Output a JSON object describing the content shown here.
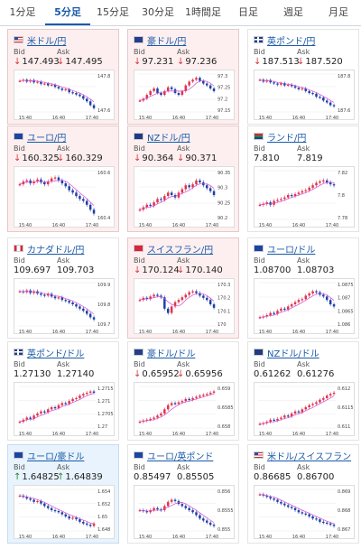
{
  "tabs": [
    {
      "label": "1分足"
    },
    {
      "label": "5分足",
      "active": true
    },
    {
      "label": "15分足"
    },
    {
      "label": "30分足"
    },
    {
      "label": "1時間足"
    },
    {
      "label": "日足"
    },
    {
      "label": "週足"
    },
    {
      "label": "月足"
    }
  ],
  "bid_label": "Bid",
  "ask_label": "Ask",
  "time_labels": [
    "15:40",
    "16:40",
    "17:40"
  ],
  "colors": {
    "up_candle": "#e0334a",
    "down_candle": "#1f3fa8",
    "ma_line": "#d24fd6",
    "tab_accent": "#1a5aa8"
  },
  "cards": [
    {
      "pair": "米ドル/円",
      "flag": "us",
      "bg": "pink",
      "dir": "down",
      "bid": "147.493",
      "ask": "147.495",
      "y_ticks": [
        "147.8",
        "147.6"
      ],
      "trend": [
        0.82,
        0.85,
        0.8,
        0.84,
        0.78,
        0.8,
        0.74,
        0.75,
        0.7,
        0.72,
        0.66,
        0.62,
        0.58,
        0.6,
        0.52,
        0.5,
        0.46,
        0.42,
        0.35,
        0.28,
        0.18,
        0.1
      ]
    },
    {
      "pair": "豪ドル/円",
      "flag": "au",
      "bg": "pink",
      "dir": "down",
      "bid": "97.231",
      "ask": "97.236",
      "y_ticks": [
        "97.3",
        "97.25",
        "97.2",
        "97.15"
      ],
      "trend": [
        0.3,
        0.35,
        0.45,
        0.55,
        0.62,
        0.5,
        0.45,
        0.55,
        0.65,
        0.6,
        0.5,
        0.45,
        0.55,
        0.7,
        0.8,
        0.85,
        0.9,
        0.82,
        0.75,
        0.7,
        0.62,
        0.55
      ]
    },
    {
      "pair": "英ポンド/円",
      "flag": "gb",
      "bg": "white",
      "dir": "down",
      "bid": "187.513",
      "ask": "187.520",
      "y_ticks": [
        "187.8",
        "187.6"
      ],
      "trend": [
        0.85,
        0.8,
        0.84,
        0.78,
        0.75,
        0.72,
        0.76,
        0.7,
        0.72,
        0.68,
        0.64,
        0.6,
        0.62,
        0.55,
        0.5,
        0.48,
        0.4,
        0.38,
        0.3,
        0.25,
        0.18,
        0.15
      ]
    },
    {
      "pair": "ユーロ/円",
      "flag": "eu",
      "bg": "pink",
      "dir": "down",
      "bid": "160.325",
      "ask": "160.329",
      "y_ticks": [
        "160.6",
        "160.4"
      ],
      "trend": [
        0.72,
        0.78,
        0.8,
        0.74,
        0.78,
        0.82,
        0.76,
        0.72,
        0.78,
        0.84,
        0.86,
        0.8,
        0.74,
        0.68,
        0.6,
        0.55,
        0.48,
        0.42,
        0.38,
        0.3,
        0.2,
        0.12
      ]
    },
    {
      "pair": "NZドル/円",
      "flag": "nz",
      "bg": "pink",
      "dir": "down",
      "bid": "90.364",
      "ask": "90.371",
      "y_ticks": [
        "90.35",
        "90.3",
        "90.25",
        "90.2"
      ],
      "trend": [
        0.2,
        0.25,
        0.3,
        0.28,
        0.35,
        0.42,
        0.4,
        0.48,
        0.55,
        0.5,
        0.45,
        0.55,
        0.62,
        0.7,
        0.66,
        0.72,
        0.8,
        0.76,
        0.7,
        0.64,
        0.58,
        0.5
      ]
    },
    {
      "pair": "ランド/円",
      "flag": "za",
      "bg": "white",
      "dir": "none",
      "bid": "7.810",
      "ask": "7.819",
      "y_ticks": [
        "7.82",
        "7.8",
        "7.78"
      ],
      "trend": [
        0.3,
        0.32,
        0.35,
        0.3,
        0.38,
        0.4,
        0.42,
        0.45,
        0.5,
        0.48,
        0.52,
        0.55,
        0.58,
        0.6,
        0.65,
        0.7,
        0.75,
        0.78,
        0.8,
        0.76,
        0.72,
        0.7
      ]
    },
    {
      "pair": "カナダドル/円",
      "flag": "ca",
      "bg": "white",
      "dir": "none",
      "bid": "109.697",
      "ask": "109.703",
      "y_ticks": [
        "109.9",
        "109.8",
        "109.7"
      ],
      "trend": [
        0.8,
        0.78,
        0.82,
        0.76,
        0.8,
        0.75,
        0.72,
        0.7,
        0.74,
        0.68,
        0.64,
        0.66,
        0.6,
        0.58,
        0.54,
        0.5,
        0.45,
        0.4,
        0.35,
        0.28,
        0.2,
        0.15
      ]
    },
    {
      "pair": "スイスフラン/円",
      "flag": "ch",
      "bg": "pink",
      "dir": "down",
      "bid": "170.124",
      "ask": "170.140",
      "y_ticks": [
        "170.3",
        "170.2",
        "170.1",
        "170"
      ],
      "trend": [
        0.6,
        0.65,
        0.62,
        0.68,
        0.72,
        0.7,
        0.66,
        0.4,
        0.3,
        0.45,
        0.55,
        0.6,
        0.66,
        0.72,
        0.78,
        0.8,
        0.76,
        0.7,
        0.65,
        0.6,
        0.5,
        0.42
      ]
    },
    {
      "pair": "ユーロ/ドル",
      "flag": "eu",
      "bg": "white",
      "dir": "none",
      "bid": "1.08700",
      "ask": "1.08703",
      "y_ticks": [
        "1.0875",
        "1.087",
        "1.0865",
        "1.086"
      ],
      "trend": [
        0.2,
        0.22,
        0.25,
        0.3,
        0.28,
        0.35,
        0.4,
        0.38,
        0.45,
        0.5,
        0.55,
        0.6,
        0.62,
        0.7,
        0.75,
        0.8,
        0.78,
        0.72,
        0.68,
        0.6,
        0.5,
        0.45
      ]
    },
    {
      "pair": "英ポンド/ドル",
      "flag": "gb",
      "bg": "white",
      "dir": "none",
      "bid": "1.27130",
      "ask": "1.27140",
      "y_ticks": [
        "1.2715",
        "1.271",
        "1.2705",
        "1.27"
      ],
      "trend": [
        0.15,
        0.2,
        0.25,
        0.22,
        0.3,
        0.35,
        0.4,
        0.38,
        0.45,
        0.5,
        0.48,
        0.55,
        0.6,
        0.58,
        0.65,
        0.7,
        0.72,
        0.78,
        0.82,
        0.85,
        0.88,
        0.85
      ]
    },
    {
      "pair": "豪ドル/ドル",
      "flag": "au",
      "bg": "white",
      "dir": "down",
      "bid": "0.65952",
      "ask": "0.65956",
      "y_ticks": [
        "0.659",
        "0.6585",
        "0.658"
      ],
      "trend": [
        0.15,
        0.18,
        0.2,
        0.22,
        0.25,
        0.3,
        0.35,
        0.45,
        0.55,
        0.6,
        0.58,
        0.62,
        0.65,
        0.7,
        0.68,
        0.72,
        0.75,
        0.78,
        0.8,
        0.82,
        0.85,
        0.88
      ]
    },
    {
      "pair": "NZドル/ドル",
      "flag": "nz",
      "bg": "white",
      "dir": "none",
      "bid": "0.61262",
      "ask": "0.61276",
      "y_ticks": [
        "0.612",
        "0.6115",
        "0.611"
      ],
      "trend": [
        0.1,
        0.12,
        0.15,
        0.2,
        0.18,
        0.22,
        0.25,
        0.3,
        0.28,
        0.35,
        0.4,
        0.38,
        0.45,
        0.5,
        0.55,
        0.58,
        0.62,
        0.68,
        0.72,
        0.78,
        0.82,
        0.85
      ]
    },
    {
      "pair": "ユーロ/豪ドル",
      "flag": "eu",
      "bg": "blue",
      "dir": "up",
      "bid": "1.64825",
      "ask": "1.64839",
      "y_ticks": [
        "1.654",
        "1.652",
        "1.65",
        "1.648"
      ],
      "trend": [
        0.85,
        0.82,
        0.78,
        0.75,
        0.7,
        0.72,
        0.66,
        0.6,
        0.55,
        0.5,
        0.48,
        0.45,
        0.4,
        0.35,
        0.3,
        0.32,
        0.28,
        0.22,
        0.18,
        0.15,
        0.12,
        0.18
      ]
    },
    {
      "pair": "ユーロ/英ポンド",
      "flag": "eu",
      "bg": "white",
      "dir": "none",
      "bid": "0.85497",
      "ask": "0.85505",
      "y_ticks": [
        "0.856",
        "0.8555",
        "0.855"
      ],
      "trend": [
        0.5,
        0.48,
        0.45,
        0.5,
        0.55,
        0.52,
        0.5,
        0.6,
        0.7,
        0.75,
        0.72,
        0.65,
        0.6,
        0.55,
        0.5,
        0.45,
        0.38,
        0.3,
        0.25,
        0.2,
        0.15,
        0.12
      ]
    },
    {
      "pair": "米ドル/スイスフラン",
      "flag": "us",
      "bg": "white",
      "dir": "none",
      "bid": "0.86685",
      "ask": "0.86700",
      "y_ticks": [
        "0.869",
        "0.868",
        "0.867"
      ],
      "trend": [
        0.88,
        0.85,
        0.82,
        0.78,
        0.75,
        0.7,
        0.66,
        0.62,
        0.58,
        0.55,
        0.5,
        0.45,
        0.42,
        0.4,
        0.35,
        0.3,
        0.28,
        0.22,
        0.2,
        0.18,
        0.15,
        0.12
      ]
    }
  ]
}
